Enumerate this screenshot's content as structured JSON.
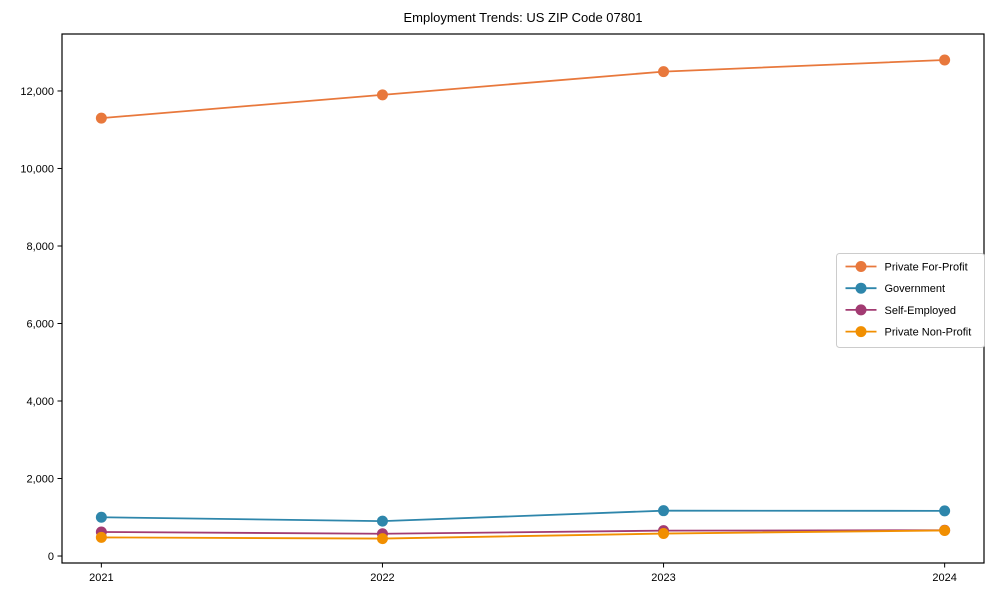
{
  "figure": {
    "background": "#ffffff",
    "axis_color": "#000000",
    "legend_border_color": "#cccccc"
  },
  "chart_data": {
    "type": "line",
    "title": "Employment Trends: US ZIP Code 07801",
    "xlabel": "",
    "ylabel": "",
    "x": [
      2021,
      2022,
      2023,
      2024
    ],
    "x_tick_labels": [
      "2021",
      "2022",
      "2023",
      "2024"
    ],
    "yticks": [
      0,
      2000,
      4000,
      6000,
      8000,
      10000,
      12000
    ],
    "ytick_labels": [
      "0",
      "2,000",
      "4,000",
      "6,000",
      "8,000",
      "10,000",
      "12,000"
    ],
    "xlim": [
      2020.86,
      2024.14
    ],
    "ylim": [
      -180,
      13470
    ],
    "grid": false,
    "legend_position": "center right",
    "series": [
      {
        "name": "Private For-Profit",
        "color": "#E8783C",
        "values": [
          11300,
          11900,
          12500,
          12800
        ]
      },
      {
        "name": "Government",
        "color": "#2E86AB",
        "values": [
          1000,
          900,
          1170,
          1165
        ]
      },
      {
        "name": "Self-Employed",
        "color": "#A23B72",
        "values": [
          620,
          575,
          655,
          665
        ]
      },
      {
        "name": "Private Non-Profit",
        "color": "#F18F01",
        "values": [
          480,
          450,
          580,
          660
        ]
      }
    ]
  }
}
